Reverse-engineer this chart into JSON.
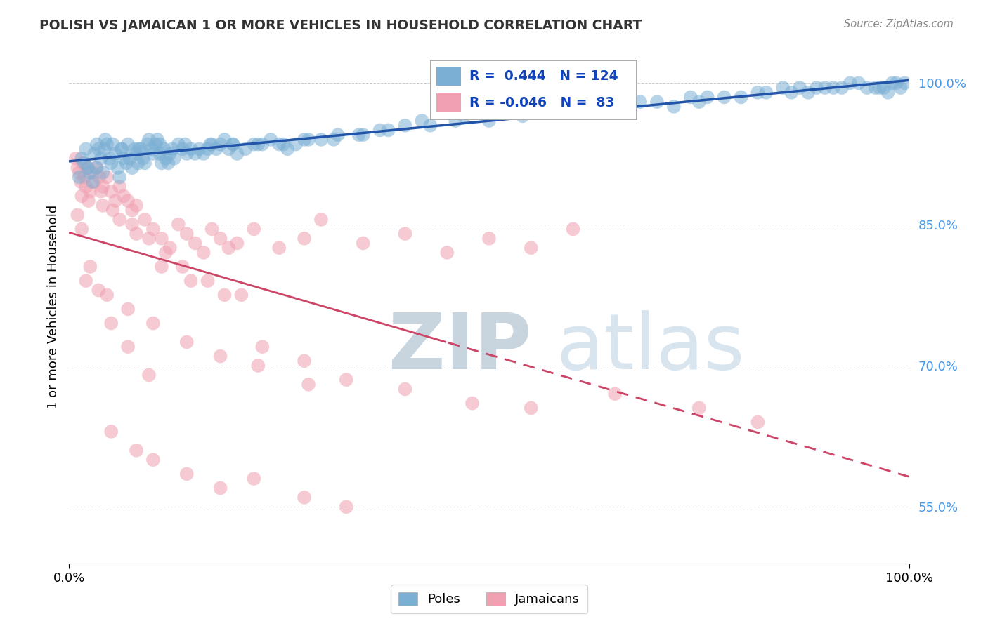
{
  "title": "POLISH VS JAMAICAN 1 OR MORE VEHICLES IN HOUSEHOLD CORRELATION CHART",
  "source": "Source: ZipAtlas.com",
  "ylabel": "1 or more Vehicles in Household",
  "ylabel_ticks": [
    55.0,
    70.0,
    85.0,
    100.0
  ],
  "ymin": 49.0,
  "ymax": 103.5,
  "xmin": 0.0,
  "xmax": 100.0,
  "legend_poles_label": "Poles",
  "legend_jamaicans_label": "Jamaicans",
  "r_poles": 0.444,
  "n_poles": 124,
  "r_jamaicans": -0.046,
  "n_jamaicans": 83,
  "poles_color": "#7bafd4",
  "jamaicans_color": "#f0a0b0",
  "trendline_poles_color": "#2255aa",
  "trendline_jamaicans_color_solid": "#cc4466",
  "trendline_jamaicans_color_dashed": "#cc4466",
  "watermark_zip": "ZIP",
  "watermark_atlas": "atlas",
  "watermark_color": "#d0dde8",
  "background_color": "#ffffff",
  "poles_x": [
    1.2,
    1.5,
    1.8,
    2.0,
    2.2,
    2.5,
    2.8,
    3.0,
    3.2,
    3.5,
    3.8,
    4.0,
    4.3,
    4.5,
    4.8,
    5.0,
    5.2,
    5.5,
    5.8,
    6.0,
    6.2,
    6.5,
    6.8,
    7.0,
    7.2,
    7.5,
    7.8,
    8.0,
    8.2,
    8.5,
    8.8,
    9.0,
    9.3,
    9.5,
    9.8,
    10.0,
    10.3,
    10.5,
    10.8,
    11.0,
    11.3,
    11.5,
    11.8,
    12.0,
    12.3,
    12.5,
    13.0,
    13.5,
    14.0,
    14.5,
    15.0,
    15.5,
    16.0,
    16.5,
    17.0,
    17.5,
    18.0,
    18.5,
    19.0,
    19.5,
    20.0,
    21.0,
    22.0,
    23.0,
    24.0,
    25.0,
    26.0,
    27.0,
    28.0,
    30.0,
    32.0,
    35.0,
    37.0,
    40.0,
    43.0,
    46.0,
    50.0,
    54.0,
    58.0,
    62.0,
    66.0,
    70.0,
    74.0,
    78.0,
    82.0,
    85.0,
    88.0,
    91.0,
    93.0,
    95.0,
    97.0,
    98.0,
    99.0,
    99.5,
    60.0,
    65.0,
    68.0,
    72.0,
    75.0,
    80.0,
    83.0,
    86.0,
    89.0,
    92.0,
    94.0,
    96.0,
    3.3,
    4.2,
    6.3,
    8.3,
    10.8,
    13.8,
    16.8,
    19.5,
    22.5,
    25.5,
    28.5,
    31.5,
    34.5,
    38.0,
    42.0,
    47.0,
    52.0,
    56.0,
    76.0,
    87.0,
    90.0,
    96.5,
    97.5,
    98.5
  ],
  "poles_y": [
    90.0,
    92.0,
    91.5,
    93.0,
    91.0,
    90.5,
    89.5,
    92.5,
    91.0,
    93.0,
    92.0,
    90.5,
    94.0,
    93.5,
    92.0,
    91.5,
    93.5,
    92.5,
    91.0,
    90.0,
    93.0,
    92.0,
    91.5,
    93.5,
    92.0,
    91.0,
    93.0,
    92.5,
    91.5,
    93.0,
    92.0,
    91.5,
    93.5,
    94.0,
    93.0,
    92.5,
    93.5,
    94.0,
    92.5,
    91.5,
    93.0,
    92.0,
    91.5,
    92.5,
    93.0,
    92.0,
    93.5,
    93.0,
    92.5,
    93.0,
    92.5,
    93.0,
    92.5,
    93.0,
    93.5,
    93.0,
    93.5,
    94.0,
    93.0,
    93.5,
    92.5,
    93.0,
    93.5,
    93.5,
    94.0,
    93.5,
    93.0,
    93.5,
    94.0,
    94.0,
    94.5,
    94.5,
    95.0,
    95.5,
    95.5,
    96.0,
    96.0,
    96.5,
    97.0,
    97.5,
    97.5,
    98.0,
    98.5,
    98.5,
    99.0,
    99.5,
    99.0,
    99.5,
    100.0,
    99.5,
    99.5,
    100.0,
    99.5,
    100.0,
    97.0,
    97.5,
    98.0,
    97.5,
    98.0,
    98.5,
    99.0,
    99.0,
    99.5,
    99.5,
    100.0,
    99.5,
    93.5,
    93.0,
    93.0,
    93.0,
    93.5,
    93.5,
    93.5,
    93.5,
    93.5,
    93.5,
    94.0,
    94.0,
    94.5,
    95.0,
    96.0,
    96.5,
    97.0,
    97.5,
    98.5,
    99.5,
    99.5,
    99.5,
    99.0,
    100.0
  ],
  "jamaicans_x": [
    0.8,
    1.0,
    1.2,
    1.4,
    1.6,
    1.8,
    2.0,
    2.2,
    2.5,
    2.8,
    3.0,
    3.3,
    3.6,
    4.0,
    4.5,
    5.0,
    5.5,
    6.0,
    6.5,
    7.0,
    7.5,
    8.0,
    9.0,
    10.0,
    11.0,
    12.0,
    13.0,
    14.0,
    15.0,
    16.0,
    17.0,
    18.0,
    19.0,
    20.0,
    22.0,
    25.0,
    28.0,
    30.0,
    35.0,
    40.0,
    45.0,
    50.0,
    55.0,
    60.0,
    1.5,
    2.3,
    3.8,
    5.2,
    7.5,
    9.5,
    11.5,
    13.5,
    16.5,
    20.5,
    4.0,
    6.0,
    8.0,
    11.0,
    14.5,
    18.5,
    2.0,
    4.5,
    7.0,
    10.0,
    14.0,
    18.0,
    23.0,
    28.0,
    33.0,
    40.0,
    48.0,
    55.0,
    65.0,
    75.0,
    82.0,
    1.0,
    1.5,
    2.5,
    3.5,
    5.0,
    7.0,
    9.5
  ],
  "jamaicans_y": [
    92.0,
    91.0,
    90.5,
    89.5,
    91.5,
    90.0,
    89.0,
    91.0,
    88.5,
    90.5,
    89.5,
    91.0,
    90.0,
    89.0,
    90.0,
    88.5,
    87.5,
    89.0,
    88.0,
    87.5,
    86.5,
    87.0,
    85.5,
    84.5,
    83.5,
    82.5,
    85.0,
    84.0,
    83.0,
    82.0,
    84.5,
    83.5,
    82.5,
    83.0,
    84.5,
    82.5,
    83.5,
    85.5,
    83.0,
    84.0,
    82.0,
    83.5,
    82.5,
    84.5,
    88.0,
    87.5,
    88.5,
    86.5,
    85.0,
    83.5,
    82.0,
    80.5,
    79.0,
    77.5,
    87.0,
    85.5,
    84.0,
    80.5,
    79.0,
    77.5,
    79.0,
    77.5,
    76.0,
    74.5,
    72.5,
    71.0,
    72.0,
    70.5,
    68.5,
    67.5,
    66.0,
    65.5,
    67.0,
    65.5,
    64.0,
    86.0,
    84.5,
    80.5,
    78.0,
    74.5,
    72.0,
    69.0
  ],
  "jamaicans_extra_x": [
    5.0,
    8.0,
    10.0,
    14.0,
    18.0,
    22.0,
    28.0,
    33.0,
    22.5,
    28.5
  ],
  "jamaicans_extra_y": [
    63.0,
    61.0,
    60.0,
    58.5,
    57.0,
    58.0,
    56.0,
    55.0,
    70.0,
    68.0
  ]
}
